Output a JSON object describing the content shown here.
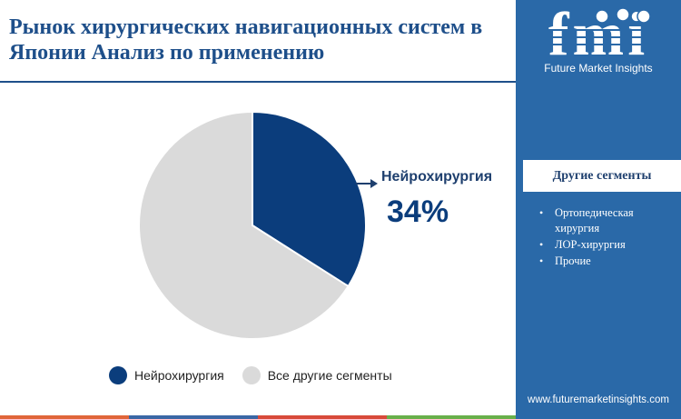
{
  "title": "Рынок хирургических навигационных систем в Японии Анализ по применению",
  "brand": {
    "logo_text": "fmi",
    "name": "Future Market Insights",
    "website": "www.futuremarketinsights.com"
  },
  "sidebar": {
    "header": "Другие сегменты",
    "items": [
      "Ортопедическая хирургия",
      "ЛОР-хирургия",
      "Прочие"
    ]
  },
  "callout": {
    "label": "Нейрохирургия",
    "value": "34%"
  },
  "colors": {
    "primary": "#0b3d7c",
    "rest": "#dadada",
    "sidebar": "#2a69a8",
    "title": "#1e4f8a"
  },
  "chart_data": {
    "type": "pie",
    "title": "",
    "slices": [
      {
        "label": "Нейрохирургия",
        "value": 34,
        "color": "#0b3d7c"
      },
      {
        "label": "Все другие сегменты",
        "value": 66,
        "color": "#dadada"
      }
    ],
    "legend": "bottom",
    "start_angle": "12 o'clock",
    "direction": "clockwise"
  },
  "footer_colors": [
    "#e0663a",
    "#3a67a5",
    "#d84a3a",
    "#68b04a"
  ]
}
